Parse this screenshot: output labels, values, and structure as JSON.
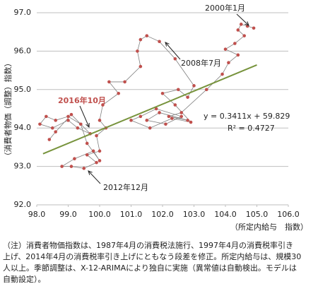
{
  "chart_data": {
    "type": "scatter",
    "y_label": "（消費者物価（調整）指数）",
    "x_label": "（所定内給与　指数）",
    "xlim": [
      98,
      106
    ],
    "xticks": [
      {
        "value": 98,
        "label": "98.0"
      },
      {
        "value": 99,
        "label": "99.0"
      },
      {
        "value": 100,
        "label": "100.0"
      },
      {
        "value": 101,
        "label": "101.0"
      },
      {
        "value": 102,
        "label": "102.0"
      },
      {
        "value": 103,
        "label": "103.0"
      },
      {
        "value": 104,
        "label": "104.0"
      },
      {
        "value": 105,
        "label": "105.0"
      },
      {
        "value": 106,
        "label": "106.0"
      }
    ],
    "ylim": [
      92,
      97
    ],
    "yticks": [
      {
        "value": 92,
        "label": "92.0"
      },
      {
        "value": 93,
        "label": "93.0"
      },
      {
        "value": 94,
        "label": "94.0"
      },
      {
        "value": 95,
        "label": "95.0"
      },
      {
        "value": 96,
        "label": "96.0"
      },
      {
        "value": 97,
        "label": "97.0"
      }
    ],
    "grid": true,
    "series": [
      {
        "color": "#c0504d",
        "x": [
          104.9,
          104.7,
          104.5,
          104.4,
          104.6,
          104.3,
          104.0,
          104.4,
          104.1,
          103.9,
          103.4,
          102.6,
          102.2,
          102.8,
          101.9,
          101.5,
          102.1,
          102.6,
          101.8,
          101.3,
          101.0,
          101.6,
          102.3,
          102.9,
          102.4,
          102.0,
          102.5,
          102.8,
          103.0,
          102.4,
          101.9,
          101.5,
          101.3,
          101.2,
          101.3,
          100.8,
          100.3,
          100.6,
          100.1,
          100.0,
          100.2,
          99.9,
          100.0,
          99.6,
          99.9,
          99.5,
          99.1,
          98.8,
          99.2,
          99.8,
          100.0,
          99.6,
          99.4,
          99.0,
          98.6,
          98.3,
          98.1,
          98.5,
          99.0,
          99.3,
          99.7,
          99.1,
          98.6,
          98.4
        ],
        "y": [
          96.6,
          96.65,
          96.7,
          96.55,
          96.4,
          96.2,
          96.05,
          95.9,
          95.7,
          95.4,
          95.0,
          94.4,
          94.3,
          94.2,
          94.4,
          94.2,
          94.1,
          94.3,
          94.5,
          94.3,
          94.2,
          94.0,
          94.25,
          94.15,
          94.6,
          94.9,
          95.0,
          94.8,
          95.1,
          95.8,
          96.25,
          96.4,
          96.3,
          96.0,
          95.6,
          95.2,
          95.2,
          94.9,
          94.6,
          94.2,
          94.0,
          93.8,
          93.4,
          93.3,
          93.1,
          92.95,
          93.0,
          93.0,
          93.2,
          93.4,
          93.15,
          93.6,
          94.1,
          94.3,
          94.2,
          94.3,
          94.1,
          94.0,
          94.2,
          94.0,
          93.85,
          94.35,
          93.9,
          93.7
        ]
      }
    ],
    "trendline": {
      "color": "#77933c",
      "x": [
        98.2,
        105.0
      ],
      "y": [
        93.33,
        95.64
      ]
    },
    "annotations": [
      "2000年1月",
      "2008年7月",
      "2016年10月",
      "2012年12月",
      "y = 0.3411x + 59.829",
      "R² = 0.4727"
    ]
  },
  "note": [
    "（注）消費者物価指数は、1987年4月の消費税法施行、1997年4月の消費税率引き",
    "上げ、2014年4月の消費税率引き上げにともなう段差を修正。所定内給与は、規模30",
    "人以上。季節調整は、X-12-ARIMAにより独自に実施（異常値は自動検出。モデルは",
    "自動設定）。"
  ]
}
